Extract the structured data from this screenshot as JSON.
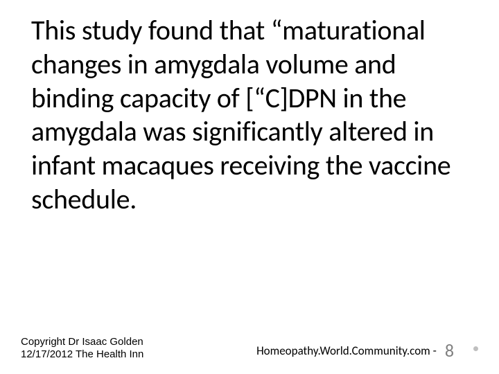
{
  "slide": {
    "main_text": "This study found that “maturational changes in amygdala volume and binding capacity of [“C]DPN in the amygdala was significantly altered in infant macaques receiving the vaccine schedule.",
    "copyright_line1": "Copyright Dr Isaac Golden",
    "copyright_line2": "12/17/2012 The Health Inn",
    "website": "Homeopathy.World.Community.com -",
    "page_number": "8"
  },
  "colors": {
    "background": "#ffffff",
    "text": "#000000",
    "page_number": "#808080",
    "bullet": "#bfbfbf"
  },
  "typography": {
    "main_fontsize": 40,
    "copyright_fontsize": 15,
    "website_fontsize": 17,
    "page_number_fontsize": 26
  }
}
